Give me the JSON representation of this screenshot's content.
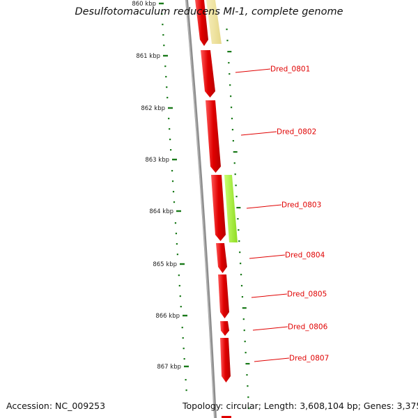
{
  "title": "Desulfotomaculum reducens MI-1, complete genome",
  "accession_text": "Accession: NC_009253",
  "summary_text": "Topology: circular; Length: 3,608,104 bp; Genes: 3,375",
  "scale_ticks": [
    {
      "kbp": 860,
      "label": "860 kbp"
    },
    {
      "kbp": 861,
      "label": "861 kbp"
    },
    {
      "kbp": 862,
      "label": "862 kbp"
    },
    {
      "kbp": 863,
      "label": "863 kbp"
    },
    {
      "kbp": 864,
      "label": "864 kbp"
    },
    {
      "kbp": 865,
      "label": "865 kbp"
    },
    {
      "kbp": 866,
      "label": "866 kbp"
    },
    {
      "kbp": 867,
      "label": "867 kbp"
    }
  ],
  "genes": [
    {
      "id": "prev",
      "label": ""
    },
    {
      "id": "Dred_0801",
      "label": "Dred_0801"
    },
    {
      "id": "Dred_0802",
      "label": "Dred_0802"
    },
    {
      "id": "Dred_0803",
      "label": "Dred_0803"
    },
    {
      "id": "Dred_0804",
      "label": "Dred_0804"
    },
    {
      "id": "Dred_0805",
      "label": "Dred_0805"
    },
    {
      "id": "Dred_0806",
      "label": "Dred_0806"
    },
    {
      "id": "Dred_0807",
      "label": "Dred_0807"
    }
  ],
  "colors": {
    "cds": "#e00000",
    "highlight_green": "#a6f03a",
    "highlight_yellow": "#f0e4a0",
    "tick_green": "#1a7a1a",
    "backbone": "#8c8c8c",
    "label_red": "#e00000"
  }
}
